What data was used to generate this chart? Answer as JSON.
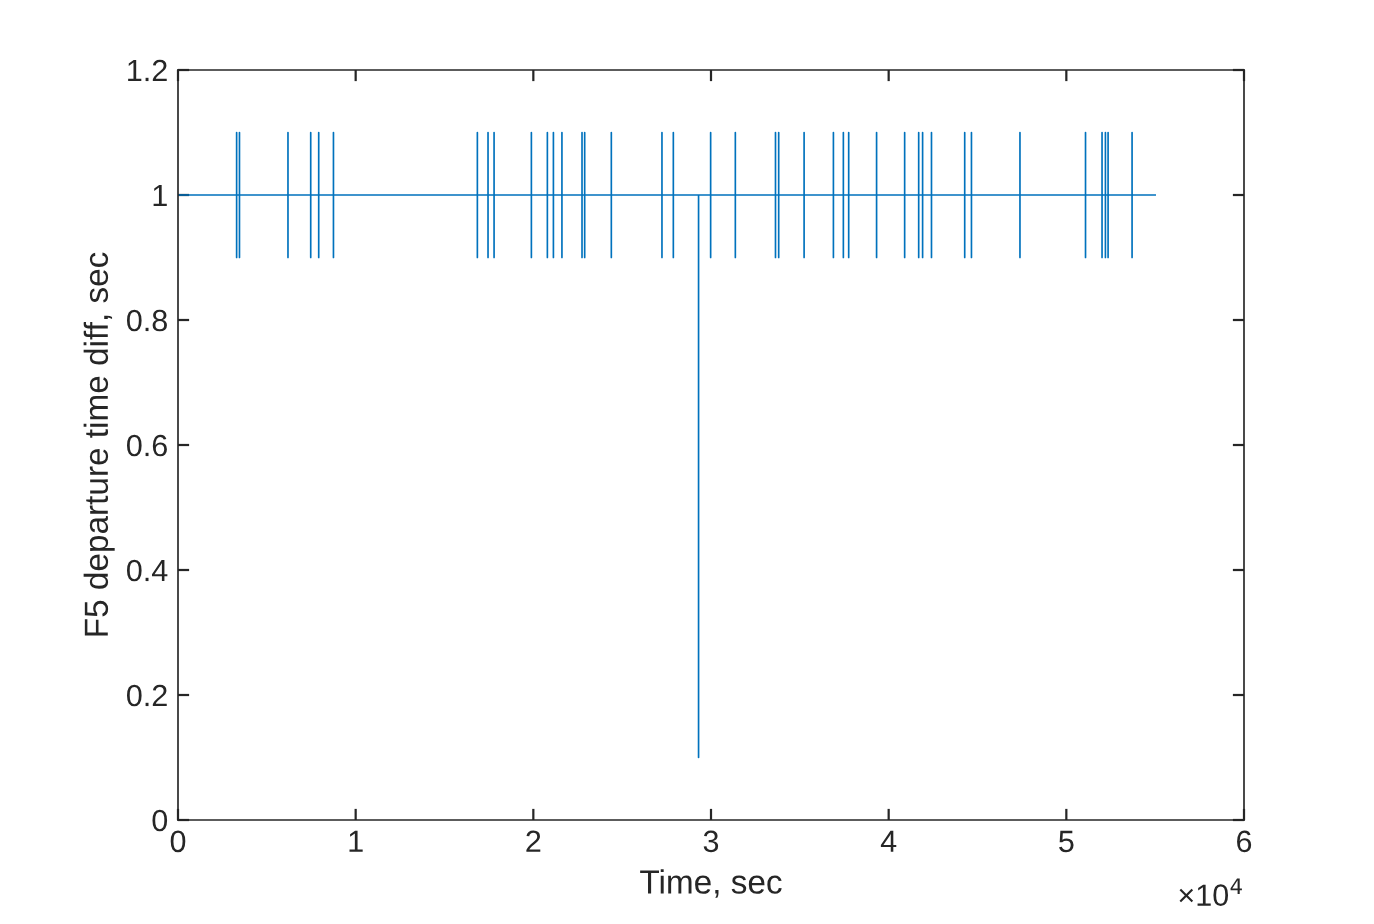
{
  "chart_data": {
    "type": "line",
    "xlabel": "Time, sec",
    "ylabel": "F5 departure time diff, sec",
    "annotations": [
      "×10$^{4}$"
    ],
    "xlim": [
      0,
      6
    ],
    "xticks": [
      0,
      1,
      2,
      3,
      4,
      5,
      6
    ],
    "ylim": [
      0,
      1.2
    ],
    "yticks": [
      0,
      0.2,
      0.4,
      0.6,
      0.8,
      1,
      1.2
    ],
    "grid": false,
    "legend": false,
    "marker": "none",
    "line_style": "solid",
    "series": [
      {
        "color": "#0072bd",
        "x": [
          0,
          0.33,
          0.33,
          0.33,
          0.33,
          0.346,
          0.346,
          0.346,
          0.346,
          0.619,
          0.619,
          0.619,
          0.619,
          0.747,
          0.747,
          0.747,
          0.747,
          0.792,
          0.792,
          0.792,
          0.792,
          0.875,
          0.875,
          0.875,
          0.875,
          1.685,
          1.685,
          1.685,
          1.685,
          1.745,
          1.745,
          1.745,
          1.745,
          1.779,
          1.779,
          1.779,
          1.779,
          1.989,
          1.989,
          1.989,
          1.989,
          2.079,
          2.079,
          2.079,
          2.079,
          2.113,
          2.113,
          2.113,
          2.113,
          2.161,
          2.161,
          2.161,
          2.161,
          2.274,
          2.274,
          2.274,
          2.274,
          2.289,
          2.289,
          2.289,
          2.289,
          2.439,
          2.439,
          2.439,
          2.439,
          2.724,
          2.724,
          2.724,
          2.724,
          2.788,
          2.788,
          2.788,
          2.788,
          2.93,
          2.93,
          2.93,
          2.998,
          2.998,
          2.998,
          2.998,
          3.137,
          3.137,
          3.137,
          3.137,
          3.363,
          3.363,
          3.363,
          3.363,
          3.381,
          3.381,
          3.381,
          3.381,
          3.524,
          3.524,
          3.524,
          3.524,
          3.689,
          3.689,
          3.689,
          3.689,
          3.745,
          3.745,
          3.745,
          3.745,
          3.775,
          3.775,
          3.775,
          3.775,
          3.932,
          3.932,
          3.932,
          3.932,
          4.09,
          4.09,
          4.09,
          4.09,
          4.169,
          4.169,
          4.169,
          4.169,
          4.191,
          4.191,
          4.191,
          4.191,
          4.241,
          4.241,
          4.241,
          4.241,
          4.428,
          4.428,
          4.428,
          4.428,
          4.466,
          4.466,
          4.466,
          4.466,
          4.739,
          4.739,
          4.739,
          4.739,
          5.108,
          5.108,
          5.108,
          5.108,
          5.201,
          5.201,
          5.201,
          5.201,
          5.22,
          5.22,
          5.22,
          5.22,
          5.235,
          5.235,
          5.235,
          5.235,
          5.37,
          5.37,
          5.37,
          5.37,
          5.5
        ],
        "values": [
          1,
          1,
          1.1,
          0.9,
          1,
          1,
          1.1,
          0.9,
          1,
          1,
          1.1,
          0.9,
          1,
          1,
          1.1,
          0.9,
          1,
          1,
          1.1,
          0.9,
          1,
          1,
          1.1,
          0.9,
          1,
          1,
          1.1,
          0.9,
          1,
          1,
          1.1,
          0.9,
          1,
          1,
          1.1,
          0.9,
          1,
          1,
          1.1,
          0.9,
          1,
          1,
          1.1,
          0.9,
          1,
          1,
          1.1,
          0.9,
          1,
          1,
          1.1,
          0.9,
          1,
          1,
          1.1,
          0.9,
          1,
          1,
          1.1,
          0.9,
          1,
          1,
          1.1,
          0.9,
          1,
          1,
          1.1,
          0.9,
          1,
          1,
          1.1,
          0.9,
          1,
          1,
          0.1,
          1,
          1,
          1.1,
          0.9,
          1,
          1,
          1.1,
          0.9,
          1,
          1,
          1.1,
          0.9,
          1,
          1,
          1.1,
          0.9,
          1,
          1,
          1.1,
          0.9,
          1,
          1,
          1.1,
          0.9,
          1,
          1,
          1.1,
          0.9,
          1,
          1,
          1.1,
          0.9,
          1,
          1,
          1.1,
          0.9,
          1,
          1,
          1.1,
          0.9,
          1,
          1,
          1.1,
          0.9,
          1,
          1,
          1.1,
          0.9,
          1,
          1,
          1.1,
          0.9,
          1,
          1,
          1.1,
          0.9,
          1,
          1,
          1.1,
          0.9,
          1,
          1,
          1.1,
          0.9,
          1,
          1,
          1.1,
          0.9,
          1,
          1,
          1.1,
          0.9,
          1,
          1,
          1.1,
          0.9,
          1,
          1,
          1.1,
          0.9,
          1,
          1,
          1.1,
          0.9,
          1,
          1
        ]
      }
    ]
  }
}
